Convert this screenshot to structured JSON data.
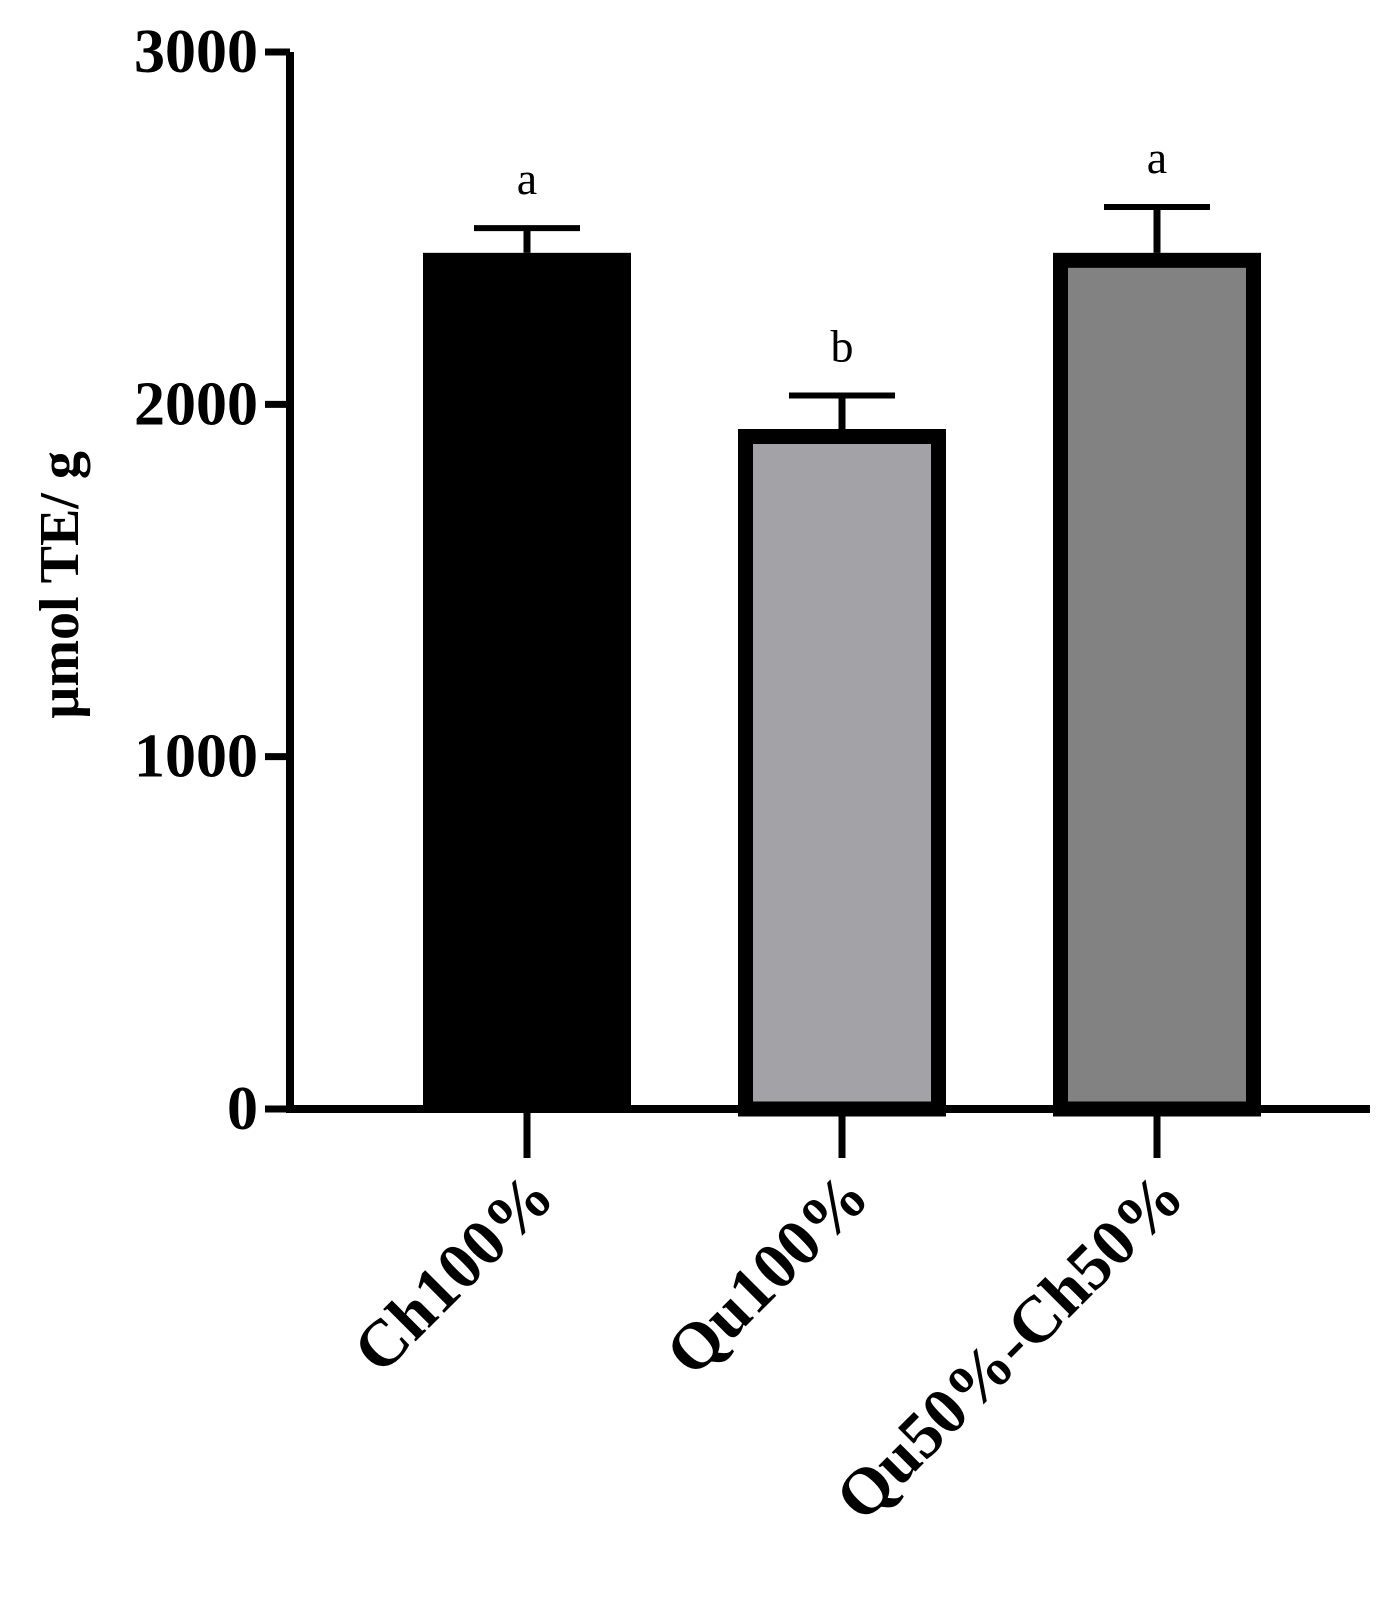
{
  "chart_data": {
    "type": "bar",
    "ylabel": "µmol TE/ g",
    "ylim": [
      0,
      3000
    ],
    "yticks": [
      0,
      1000,
      2000,
      3000
    ],
    "categories": [
      "Ch100%",
      "Qu100%",
      "Qu50%-Ch50%"
    ],
    "values": [
      2430,
      1930,
      2430
    ],
    "errors": [
      70,
      95,
      130
    ],
    "significance": [
      "a",
      "b",
      "a"
    ],
    "colors": [
      "#000000",
      "#a3a2a7",
      "#828282"
    ],
    "grid": false
  }
}
